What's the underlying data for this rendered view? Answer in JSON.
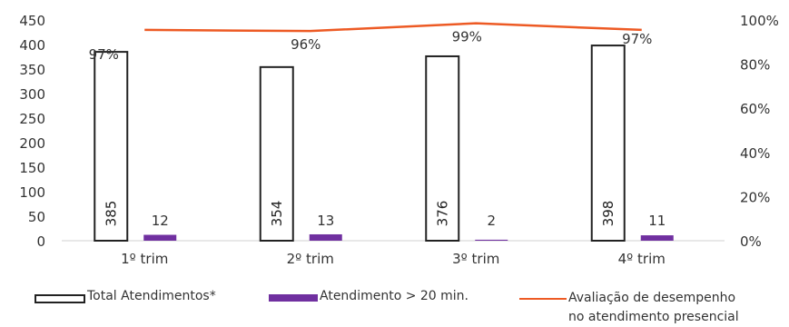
{
  "chart_data": {
    "type": "bar",
    "categories": [
      "1º trim",
      "2º trim",
      "3º trim",
      "4º trim"
    ],
    "series": [
      {
        "name": "Total Atendimentos*",
        "type": "bar",
        "axis": "left",
        "values": [
          385,
          354,
          376,
          398
        ],
        "color": "#FFFFFF",
        "stroke": "#222222"
      },
      {
        "name": "Atendimento > 20 min.",
        "type": "bar",
        "axis": "left",
        "values": [
          12,
          13,
          2,
          11
        ],
        "color": "#7030A0"
      },
      {
        "name": "Avaliação de desempenho\nno atendimento presencial",
        "type": "line",
        "axis": "right",
        "values": [
          0.97,
          0.96,
          0.99,
          0.97
        ],
        "labels": [
          "97%",
          "96%",
          "99%",
          "97%"
        ],
        "color": "#ED5A24"
      }
    ],
    "y_left": {
      "ylim": [
        0,
        450
      ],
      "ticks": [
        "0",
        "50",
        "100",
        "150",
        "200",
        "250",
        "300",
        "350",
        "400",
        "450"
      ]
    },
    "y_right": {
      "ylim": [
        0,
        1.0
      ],
      "ticks": [
        "0%",
        "20%",
        "40%",
        "60%",
        "80%",
        "100%"
      ]
    },
    "grid": false,
    "legend": "bottom"
  }
}
